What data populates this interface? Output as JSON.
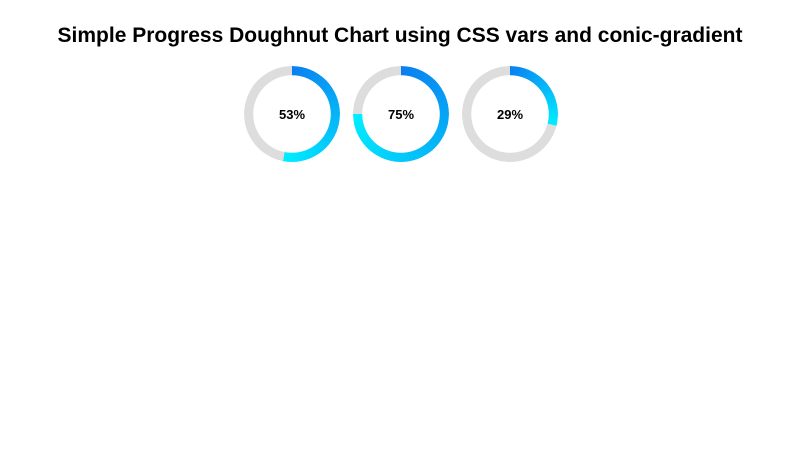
{
  "title": "Simple Progress Doughnut Chart using CSS vars and conic-gradient",
  "chart_data": {
    "type": "pie",
    "title": "Simple Progress Doughnut Chart using CSS vars and conic-gradient",
    "values": [
      53,
      75,
      29
    ],
    "labels": [
      "53%",
      "75%",
      "29%"
    ],
    "colors": {
      "gradient_start": "#0a7ff0",
      "gradient_end": "#00eeff",
      "track": "#dddddd"
    }
  }
}
